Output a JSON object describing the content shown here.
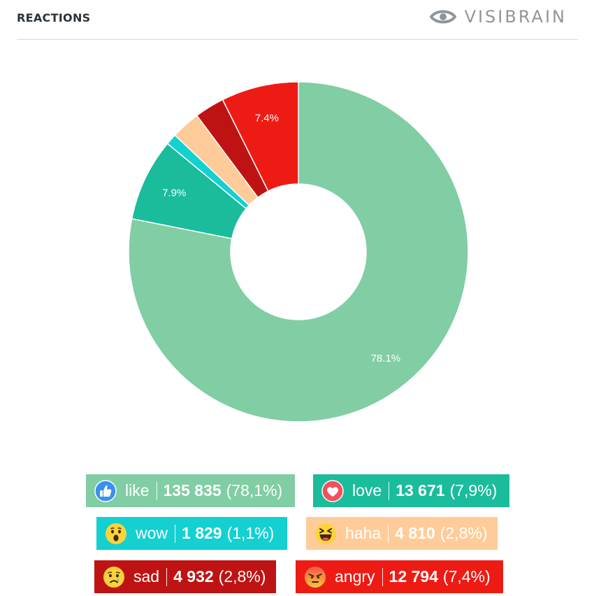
{
  "header": {
    "title": "REACTIONS",
    "brand": "VISIBRAIN",
    "brand_icon": "eye-icon"
  },
  "colors": {
    "like": "#81cda4",
    "love": "#1abc9c",
    "wow": "#14d0d1",
    "haha": "#ffcc99",
    "sad": "#bf1313",
    "angry": "#ee1b14"
  },
  "chart_data": {
    "type": "pie",
    "donut": true,
    "slices": [
      {
        "key": "like",
        "value": 135835,
        "label": "78.1%",
        "color": "#81cda4"
      },
      {
        "key": "love",
        "value": 13671,
        "label": "7.9%",
        "color": "#1abc9c"
      },
      {
        "key": "wow",
        "value": 1829,
        "label": "",
        "color": "#14d0d1"
      },
      {
        "key": "haha",
        "value": 4810,
        "label": "",
        "color": "#ffcc99"
      },
      {
        "key": "sad",
        "value": 4932,
        "label": "",
        "color": "#bf1313"
      },
      {
        "key": "angry",
        "value": 12794,
        "label": "7.4%",
        "color": "#ee1b14"
      }
    ]
  },
  "legend": {
    "like": {
      "name": "like",
      "count": "135 835",
      "pct": "(78,1%)",
      "icon": "thumbs-up-icon"
    },
    "love": {
      "name": "love",
      "count": "13 671",
      "pct": "(7,9%)",
      "icon": "heart-icon"
    },
    "wow": {
      "name": "wow",
      "count": "1 829",
      "pct": "(1,1%)",
      "icon": "wow-face-icon"
    },
    "haha": {
      "name": "haha",
      "count": "4 810",
      "pct": "(2,8%)",
      "icon": "laughing-face-icon"
    },
    "sad": {
      "name": "sad",
      "count": "4 932",
      "pct": "(2,8%)",
      "icon": "sad-face-icon"
    },
    "angry": {
      "name": "angry",
      "count": "12 794",
      "pct": "(7,4%)",
      "icon": "angry-face-icon"
    }
  }
}
